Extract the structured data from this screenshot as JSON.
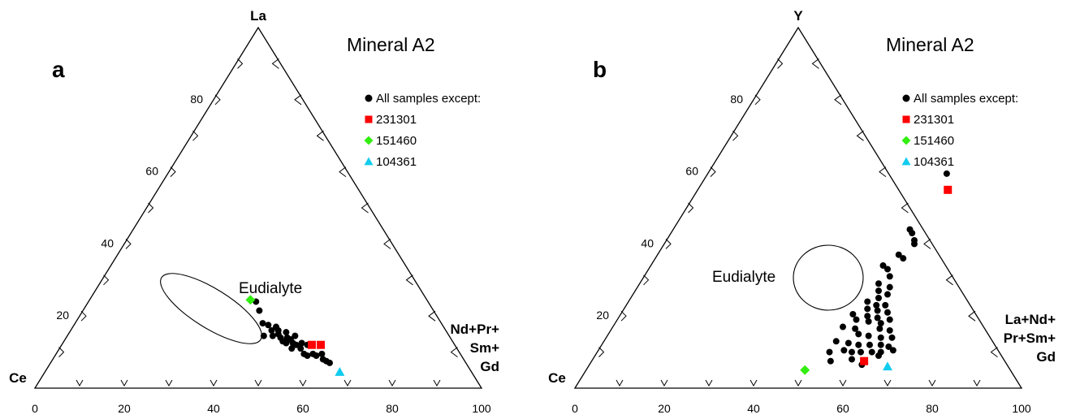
{
  "chart_data": [
    {
      "type": "scatter",
      "subtype": "ternary",
      "panel_label": "a",
      "title": "Mineral A2",
      "vertices": {
        "top": "La",
        "left": "Ce",
        "right": "Nd+Pr+\nSm+\nGd"
      },
      "bottom_axis_ticks": [
        "0",
        "20",
        "40",
        "60",
        "80",
        "100"
      ],
      "left_axis_ticks": [
        "20",
        "40",
        "60",
        "80"
      ],
      "annotation": "Eudialyte",
      "legend": [
        {
          "label": "All samples except:",
          "marker": "circle",
          "color": "#000000"
        },
        {
          "label": "231301",
          "marker": "square",
          "color": "#ff0000"
        },
        {
          "label": "151460",
          "marker": "diamond",
          "color": "#33ee11"
        },
        {
          "label": "104361",
          "marker": "triangle",
          "color": "#11ccee"
        }
      ],
      "series": [
        {
          "name": "All samples except:",
          "points": [
            {
              "x": 37.5,
              "y": 24
            },
            {
              "x": 39.5,
              "y": 21.5
            },
            {
              "x": 42,
              "y": 18
            },
            {
              "x": 43.5,
              "y": 17.5
            },
            {
              "x": 44,
              "y": 14.5
            },
            {
              "x": 45,
              "y": 16
            },
            {
              "x": 45.5,
              "y": 17
            },
            {
              "x": 46,
              "y": 14.5
            },
            {
              "x": 46.5,
              "y": 16
            },
            {
              "x": 47,
              "y": 15
            },
            {
              "x": 48,
              "y": 14
            },
            {
              "x": 48.5,
              "y": 15.5
            },
            {
              "x": 49,
              "y": 13
            },
            {
              "x": 49.5,
              "y": 14
            },
            {
              "x": 50,
              "y": 12.5
            },
            {
              "x": 50.5,
              "y": 13.5
            },
            {
              "x": 51,
              "y": 14.5
            },
            {
              "x": 51.5,
              "y": 12.5
            },
            {
              "x": 52,
              "y": 11
            },
            {
              "x": 52.5,
              "y": 12
            },
            {
              "x": 53.5,
              "y": 12.5
            },
            {
              "x": 54,
              "y": 11
            },
            {
              "x": 55,
              "y": 12
            },
            {
              "x": 55.5,
              "y": 9.5
            },
            {
              "x": 56.5,
              "y": 9
            },
            {
              "x": 57.5,
              "y": 9.5
            },
            {
              "x": 58.5,
              "y": 9
            },
            {
              "x": 59.5,
              "y": 9.5
            },
            {
              "x": 60.5,
              "y": 8
            },
            {
              "x": 61.5,
              "y": 7.5
            },
            {
              "x": 62.5,
              "y": 7
            }
          ]
        },
        {
          "name": "231301",
          "points": [
            {
              "x": 56,
              "y": 12
            },
            {
              "x": 58,
              "y": 12
            }
          ]
        },
        {
          "name": "151460",
          "points": [
            {
              "x": 36,
              "y": 24.5
            }
          ]
        },
        {
          "name": "104361",
          "points": [
            {
              "x": 66,
              "y": 4.5
            }
          ]
        }
      ]
    },
    {
      "type": "scatter",
      "subtype": "ternary",
      "panel_label": "b",
      "title": "Mineral A2",
      "vertices": {
        "top": "Y",
        "left": "Ce",
        "right": "La+Nd+\nPr+Sm+\nGd"
      },
      "bottom_axis_ticks": [
        "0",
        "20",
        "40",
        "60",
        "80",
        "100"
      ],
      "left_axis_ticks": [
        "20",
        "40",
        "60",
        "80"
      ],
      "annotation": "Eudialyte",
      "legend": [
        {
          "label": "All samples except:",
          "marker": "circle",
          "color": "#000000"
        },
        {
          "label": "231301",
          "marker": "square",
          "color": "#ff0000"
        },
        {
          "label": "151460",
          "marker": "diamond",
          "color": "#33ee11"
        },
        {
          "label": "104361",
          "marker": "triangle",
          "color": "#11ccee"
        }
      ],
      "series": [
        {
          "name": "All samples except:",
          "points": [
            {
              "x": 53.5,
              "y": 59.5
            },
            {
              "x": 53,
              "y": 44
            },
            {
              "x": 54,
              "y": 43
            },
            {
              "x": 55.5,
              "y": 41
            },
            {
              "x": 56,
              "y": 40
            },
            {
              "x": 54,
              "y": 37
            },
            {
              "x": 55.5,
              "y": 36
            },
            {
              "x": 52,
              "y": 34
            },
            {
              "x": 53.5,
              "y": 33
            },
            {
              "x": 55,
              "y": 31
            },
            {
              "x": 53.5,
              "y": 29
            },
            {
              "x": 56.5,
              "y": 28
            },
            {
              "x": 54.5,
              "y": 27
            },
            {
              "x": 57,
              "y": 26
            },
            {
              "x": 55.5,
              "y": 25
            },
            {
              "x": 53.5,
              "y": 24
            },
            {
              "x": 56,
              "y": 23
            },
            {
              "x": 58,
              "y": 23
            },
            {
              "x": 54.5,
              "y": 22
            },
            {
              "x": 57,
              "y": 21.5
            },
            {
              "x": 59.5,
              "y": 21
            },
            {
              "x": 52,
              "y": 20.5
            },
            {
              "x": 55.5,
              "y": 20
            },
            {
              "x": 58,
              "y": 19.5
            },
            {
              "x": 61,
              "y": 19
            },
            {
              "x": 53.5,
              "y": 19
            },
            {
              "x": 56.5,
              "y": 18.5
            },
            {
              "x": 59.5,
              "y": 18
            },
            {
              "x": 51.5,
              "y": 17
            },
            {
              "x": 54.5,
              "y": 16.5
            },
            {
              "x": 60,
              "y": 16.5
            },
            {
              "x": 62.5,
              "y": 16
            },
            {
              "x": 56,
              "y": 15
            },
            {
              "x": 58.5,
              "y": 14.5
            },
            {
              "x": 61.5,
              "y": 14
            },
            {
              "x": 64,
              "y": 14
            },
            {
              "x": 52,
              "y": 13
            },
            {
              "x": 55,
              "y": 12.5
            },
            {
              "x": 57.5,
              "y": 12
            },
            {
              "x": 60,
              "y": 12
            },
            {
              "x": 62.5,
              "y": 12
            },
            {
              "x": 64.5,
              "y": 11.5
            },
            {
              "x": 52,
              "y": 10
            },
            {
              "x": 55,
              "y": 10.5
            },
            {
              "x": 57,
              "y": 10
            },
            {
              "x": 59,
              "y": 10
            },
            {
              "x": 61.5,
              "y": 10
            },
            {
              "x": 63.5,
              "y": 10
            },
            {
              "x": 66,
              "y": 10.5
            },
            {
              "x": 53.5,
              "y": 7.5
            },
            {
              "x": 58,
              "y": 8
            },
            {
              "x": 61,
              "y": 6.5
            },
            {
              "x": 63.5,
              "y": 9
            }
          ]
        },
        {
          "name": "231301",
          "points": [
            {
              "x": 56,
              "y": 55
            },
            {
              "x": 61,
              "y": 7.5
            }
          ]
        },
        {
          "name": "151460",
          "points": [
            {
              "x": 49,
              "y": 5
            }
          ]
        },
        {
          "name": "104361",
          "points": [
            {
              "x": 67,
              "y": 6
            }
          ]
        }
      ]
    }
  ]
}
